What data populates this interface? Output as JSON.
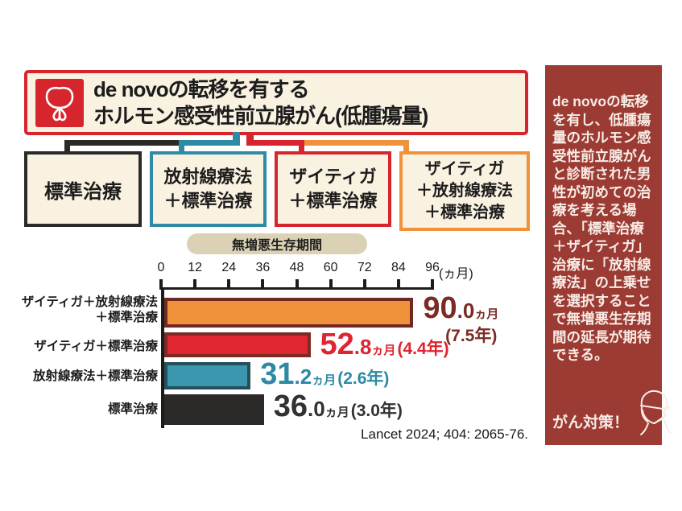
{
  "header": {
    "title_line1": "de novoの転移を有する",
    "title_line2": "ホルモン感受性前立腺がん(低腫瘍量)"
  },
  "treatment_boxes": [
    {
      "lines": [
        "標準治療"
      ],
      "border": "black"
    },
    {
      "lines": [
        "放射線療法",
        "＋標準治療"
      ],
      "border": "teal"
    },
    {
      "lines": [
        "ザイティガ",
        "＋標準治療"
      ],
      "border": "red"
    },
    {
      "lines": [
        "ザイティガ",
        "＋放射線療法",
        "＋標準治療"
      ],
      "border": "orange"
    }
  ],
  "chart_data": {
    "type": "bar",
    "orientation": "horizontal",
    "title": "無増悪生存期間",
    "x_ticks": [
      "0",
      "12",
      "24",
      "36",
      "48",
      "60",
      "72",
      "84",
      "96"
    ],
    "x_unit": "(ヵ月)",
    "xlim": [
      0,
      96
    ],
    "grid": false,
    "bars": [
      {
        "label_lines": [
          "ザイティガ＋放射線療法",
          "＋標準治療"
        ],
        "months": 90.0,
        "years": 7.5,
        "fill": "#f0913c",
        "stroke": "#6f2822",
        "value_color": "#7b2b24",
        "display": {
          "num": "90",
          "dec": ".0",
          "unit": "ヵ月",
          "years": "(7.5年)"
        }
      },
      {
        "label_lines": [
          "ザイティガ＋標準治療"
        ],
        "months": 52.8,
        "years": 4.4,
        "fill": "#e02630",
        "stroke": "#7b2b24",
        "value_color": "#df2430",
        "display": {
          "num": "52",
          "dec": ".8",
          "unit": "ヵ月",
          "years": "(4.4年)"
        }
      },
      {
        "label_lines": [
          "放射線療法＋標準治療"
        ],
        "months": 31.2,
        "years": 2.6,
        "fill": "#3a97ae",
        "stroke": "#23505b",
        "value_color": "#2e89a5",
        "display": {
          "num": "31",
          "dec": ".2",
          "unit": "ヵ月",
          "years": "(2.6年)"
        }
      },
      {
        "label_lines": [
          "標準治療"
        ],
        "months": 36.0,
        "years": 3.0,
        "fill": "#2b2a28",
        "stroke": "#2b2a28",
        "value_color": "#323232",
        "display": {
          "num": "36",
          "dec": ".0",
          "unit": "ヵ月",
          "years": "(3.0年)"
        }
      }
    ]
  },
  "citation": "Lancet 2024; 404: 2065-76.",
  "sidebar": {
    "body": "de novoの転移を有し、低腫瘍量のホルモン感受性前立腺がんと診断された男性が初めての治療を考える場合、「標準治療＋ザイティガ」治療に「放射線療法」の上乗せを選択することで無増悪生存期間の延長が期待できる。",
    "slogan": "がん対策！"
  },
  "colors": {
    "black": "#2b2a28",
    "teal": "#2e8aa5",
    "red": "#d7252d",
    "orange": "#f0913c",
    "maroon": "#7b2b24",
    "cream": "#faf2e1",
    "pill": "#dbd2b6",
    "sidebar": "#9c3b33"
  }
}
